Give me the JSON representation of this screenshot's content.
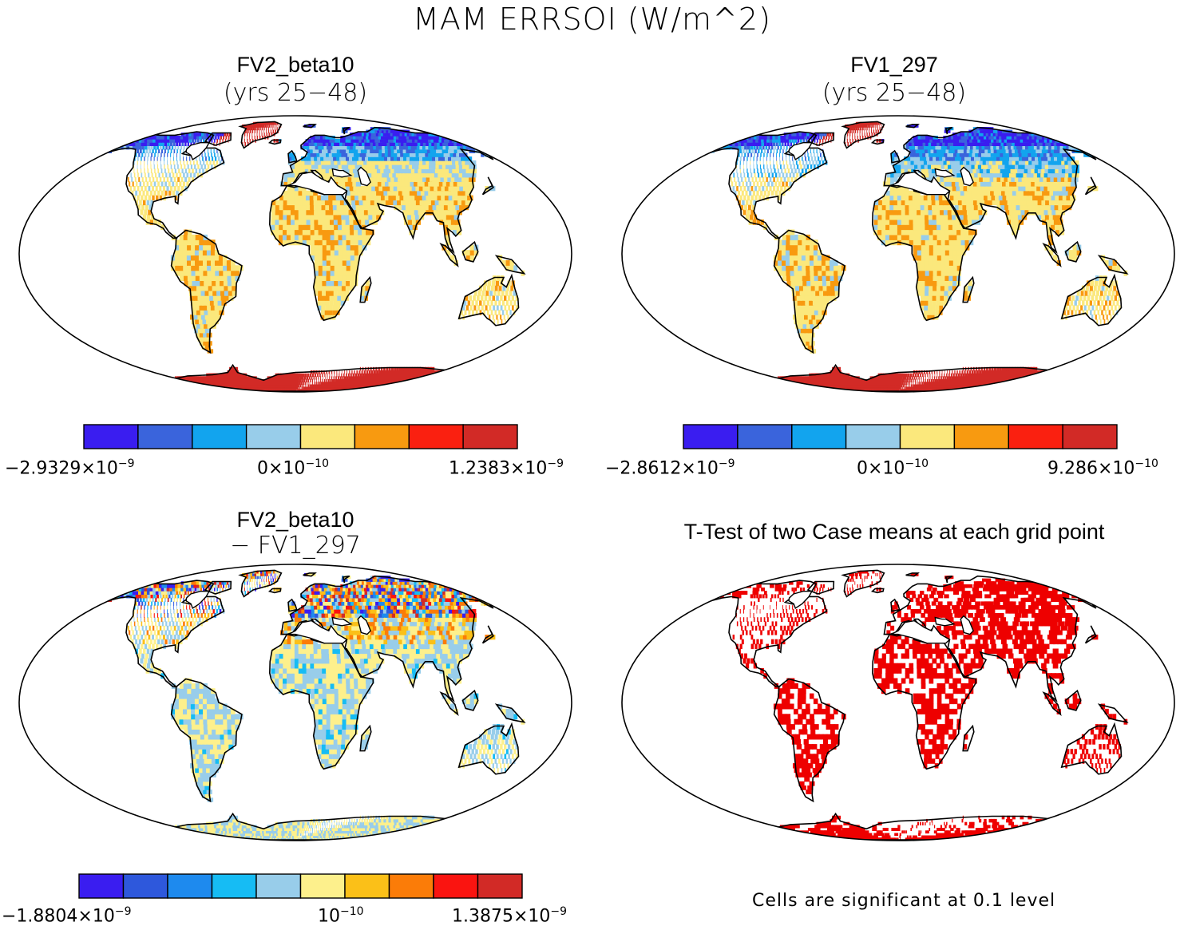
{
  "figure": {
    "title": "MAM ERRSOI (W/m^2)"
  },
  "colors": {
    "palette8": [
      "#3a1df0",
      "#3a64dc",
      "#12a4ee",
      "#98cdea",
      "#fbe87c",
      "#f89a10",
      "#fa2010",
      "#d22a26"
    ],
    "palette10": [
      "#3a1df0",
      "#2e58dc",
      "#1e8aee",
      "#16bcf4",
      "#98cdea",
      "#fdf08c",
      "#fbc018",
      "#fb7c08",
      "#fa1410",
      "#d22a26"
    ],
    "significance": "#ee0000",
    "ocean": "#ffffff",
    "coast": "#000000"
  },
  "panels": [
    {
      "id": "fv2",
      "title": "FV2_beta10",
      "subtitle": "(yrs 25−48)",
      "legend_type": "colorbar",
      "colorbar": {
        "n_bins": 8,
        "min_label": "−2.9329×10",
        "min_exp": "−9",
        "mid_label": "0×10",
        "mid_exp": "−10",
        "max_label": "1.2383×10",
        "max_exp": "−9"
      }
    },
    {
      "id": "fv1",
      "title": "FV1_297",
      "subtitle": "(yrs 25−48)",
      "legend_type": "colorbar",
      "colorbar": {
        "n_bins": 8,
        "min_label": "−2.8612×10",
        "min_exp": "−9",
        "mid_label": "0×10",
        "mid_exp": "−10",
        "max_label": "9.286×10",
        "max_exp": "−10"
      }
    },
    {
      "id": "diff",
      "title": "FV2_beta10",
      "subtitle": "− FV1_297",
      "legend_type": "colorbar",
      "colorbar": {
        "n_bins": 10,
        "min_label": "−1.8804×10",
        "min_exp": "−9",
        "mid_label": "10",
        "mid_exp": "−10",
        "max_label": "1.3875×10",
        "max_exp": "−9"
      }
    },
    {
      "id": "ttest",
      "title": "T-Test of two Case means at each grid point",
      "legend_type": "note",
      "note": "Cells are significant at 0.1 level"
    }
  ]
}
